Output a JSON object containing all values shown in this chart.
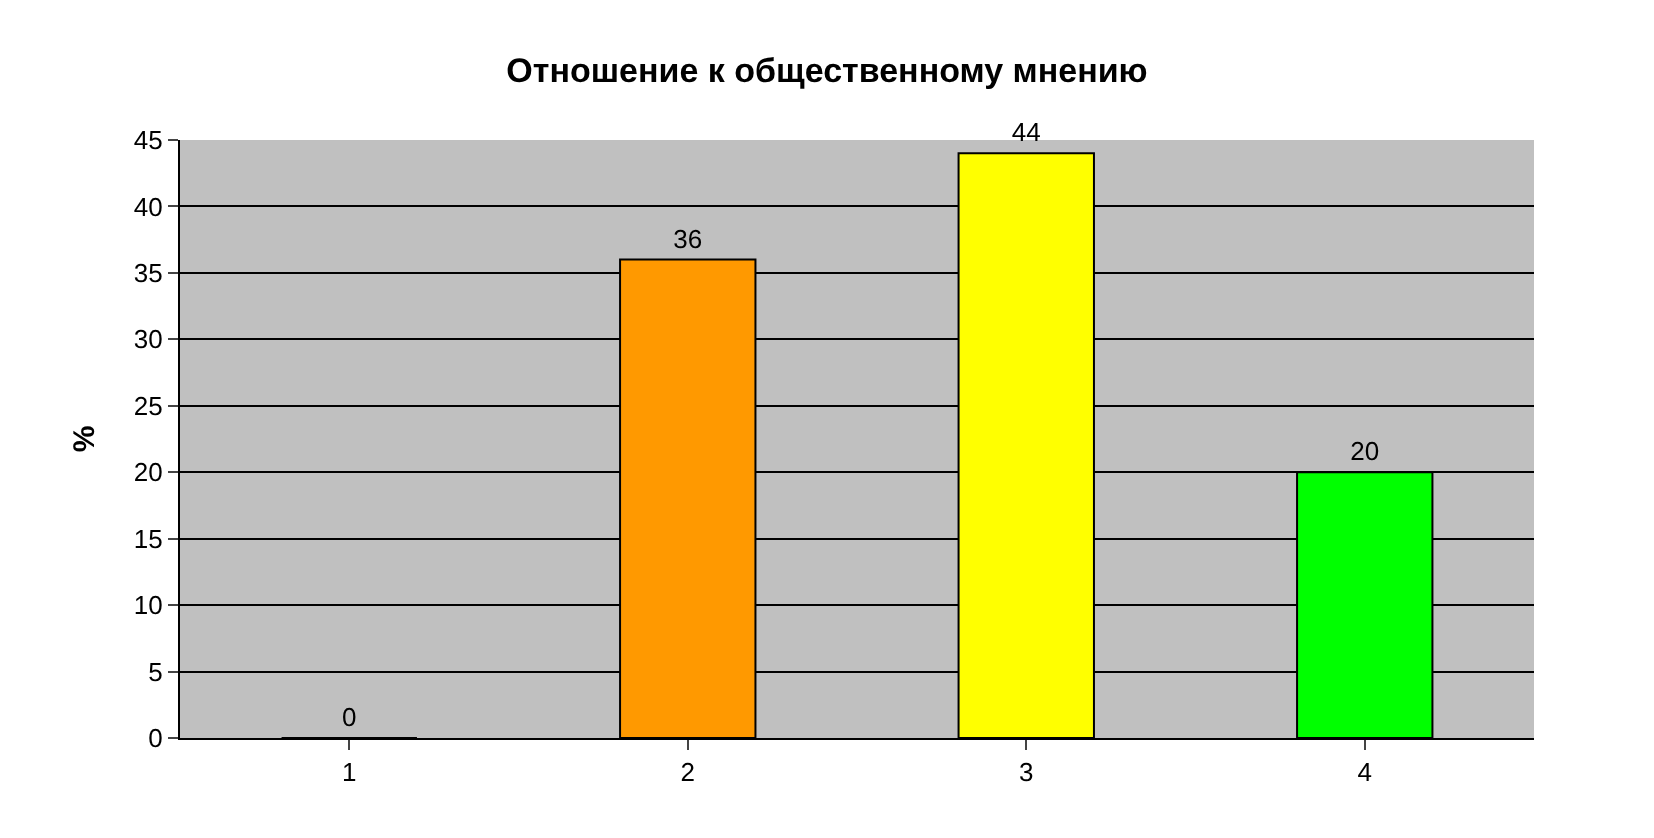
{
  "chart_data": {
    "type": "bar",
    "title": "Отношение к общественному мнению",
    "ylabel": "%",
    "categories": [
      "1",
      "2",
      "3",
      "4"
    ],
    "values": [
      0,
      36,
      44,
      20
    ],
    "colors": [
      "#cc0000",
      "#ff9900",
      "#ffff00",
      "#00ff00"
    ],
    "ylim": [
      0,
      45
    ],
    "yticks": [
      0,
      5,
      10,
      15,
      20,
      25,
      30,
      35,
      40,
      45
    ],
    "grid": "y",
    "data_labels": true
  }
}
